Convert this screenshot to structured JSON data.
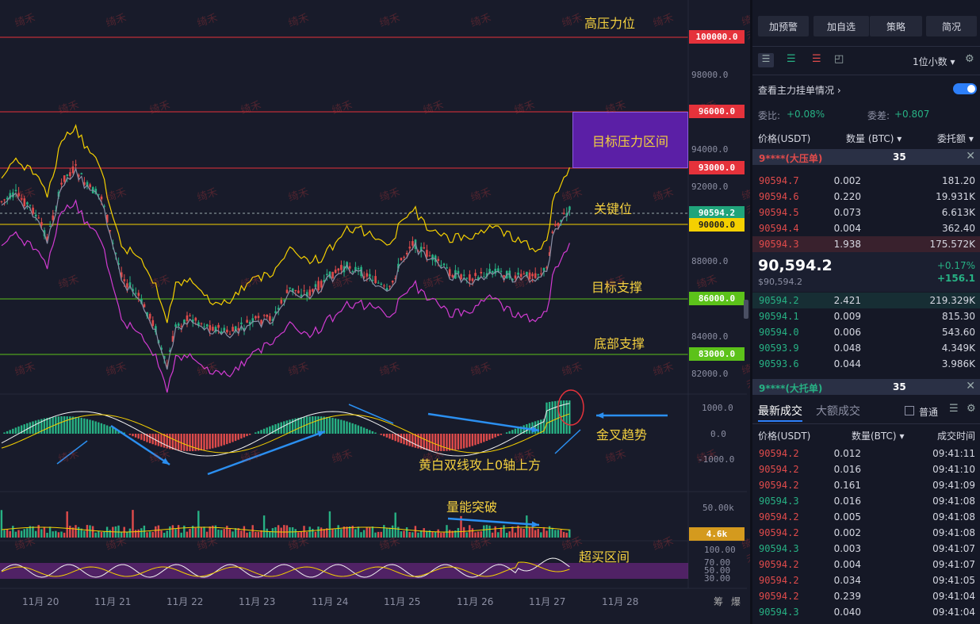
{
  "annotations": {
    "high_pressure": "高压力位",
    "target_zone": "目标压力区间",
    "key_level": "关键位",
    "target_support": "目标支撑",
    "bottom_support": "底部支撑",
    "golden_cross": "金叉趋势",
    "dual_lines": "黄白双线攻上0轴上方",
    "volume_break": "量能突破",
    "overbought": "超买区间"
  },
  "price_levels": [
    {
      "label": "100000.0",
      "color": "#e5323b"
    },
    {
      "label": "96000.0",
      "color": "#e5323b"
    },
    {
      "label": "93000.0",
      "color": "#e5323b"
    },
    {
      "label": "90594.2",
      "color": "#20a47b"
    },
    {
      "label": "90000.0",
      "color": "#f5d000"
    },
    {
      "label": "86000.0",
      "color": "#5cc21a"
    },
    {
      "label": "83000.0",
      "color": "#5cc21a"
    }
  ],
  "price_axis": [
    "98000.0",
    "94000.0",
    "92000.0",
    "88000.0",
    "84000.0",
    "82000.0"
  ],
  "macd_axis": [
    "1000.0",
    "0.0",
    "-1000.0"
  ],
  "volume_axis": "50.00k",
  "volume_tag": "4.6k",
  "rsi_axis": [
    "100.00",
    "70.00",
    "50.00",
    "30.00"
  ],
  "dates": [
    "11月 20",
    "11月 21",
    "11月 22",
    "11月 23",
    "11月 24",
    "11月 25",
    "11月 26",
    "11月 27",
    "11月 28"
  ],
  "bottom_icons": [
    "筹",
    "爆"
  ],
  "watermark": "绮禾",
  "panel": {
    "buttons": [
      "加预警",
      "加自选",
      "策略",
      "简况"
    ],
    "decimals": "1位小数",
    "view_orders": "查看主力挂单情况",
    "ratio_label": "委比:",
    "ratio_value": "+0.08%",
    "diff_label": "委差:",
    "diff_value": "+0.807",
    "col_price": "价格(USDT)",
    "col_qty": "数量 (BTC)",
    "col_amount": "委托额",
    "big_ask_label": "9****(大压单)",
    "big_ask_qty": "35",
    "asks": [
      {
        "price": "90594.7",
        "qty": "0.002",
        "amount": "181.20"
      },
      {
        "price": "90594.6",
        "qty": "0.220",
        "amount": "19.931K"
      },
      {
        "price": "90594.5",
        "qty": "0.073",
        "amount": "6.613K"
      },
      {
        "price": "90594.4",
        "qty": "0.004",
        "amount": "362.40"
      },
      {
        "price": "90594.3",
        "qty": "1.938",
        "amount": "175.572K"
      }
    ],
    "last_price": "90,594.2",
    "last_price_sub": "$90,594.2",
    "change_pct": "+0.17%",
    "change_abs": "+156.1",
    "bids": [
      {
        "price": "90594.2",
        "qty": "2.421",
        "amount": "219.329K"
      },
      {
        "price": "90594.1",
        "qty": "0.009",
        "amount": "815.30"
      },
      {
        "price": "90594.0",
        "qty": "0.006",
        "amount": "543.60"
      },
      {
        "price": "90593.9",
        "qty": "0.048",
        "amount": "4.349K"
      },
      {
        "price": "90593.6",
        "qty": "0.044",
        "amount": "3.986K"
      }
    ],
    "big_bid_label": "9****(大托单)",
    "big_bid_qty": "35",
    "tab_latest": "最新成交",
    "tab_big": "大额成交",
    "normal_label": "普通",
    "trades_col_price": "价格(USDT)",
    "trades_col_qty": "数量(BTC)",
    "trades_col_time": "成交时间",
    "trades": [
      {
        "price": "90594.2",
        "qty": "0.012",
        "time": "09:41:11",
        "side": "sell"
      },
      {
        "price": "90594.2",
        "qty": "0.016",
        "time": "09:41:10",
        "side": "sell"
      },
      {
        "price": "90594.2",
        "qty": "0.161",
        "time": "09:41:09",
        "side": "sell"
      },
      {
        "price": "90594.3",
        "qty": "0.016",
        "time": "09:41:08",
        "side": "buy"
      },
      {
        "price": "90594.2",
        "qty": "0.005",
        "time": "09:41:08",
        "side": "sell"
      },
      {
        "price": "90594.2",
        "qty": "0.002",
        "time": "09:41:08",
        "side": "sell"
      },
      {
        "price": "90594.3",
        "qty": "0.003",
        "time": "09:41:07",
        "side": "buy"
      },
      {
        "price": "90594.2",
        "qty": "0.004",
        "time": "09:41:07",
        "side": "sell"
      },
      {
        "price": "90594.2",
        "qty": "0.034",
        "time": "09:41:05",
        "side": "sell"
      },
      {
        "price": "90594.2",
        "qty": "0.239",
        "time": "09:41:04",
        "side": "sell"
      },
      {
        "price": "90594.3",
        "qty": "0.040",
        "time": "09:41:04",
        "side": "buy"
      }
    ]
  }
}
